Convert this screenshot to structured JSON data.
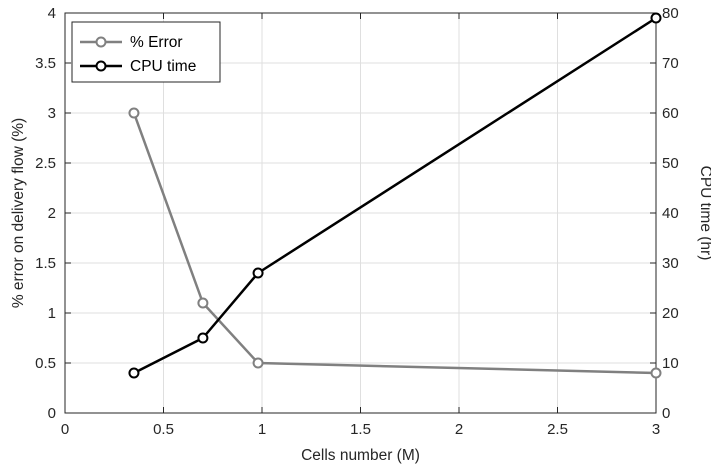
{
  "chart_data": {
    "type": "line",
    "xlabel": "Cells number (M)",
    "ylabel_left": "% error on delivery flow (%)",
    "ylabel_right": "CPU time (hr)",
    "xlim": [
      0,
      3
    ],
    "ylim_left": [
      0,
      4
    ],
    "ylim_right": [
      0,
      80
    ],
    "x_ticks": [
      0,
      0.5,
      1,
      1.5,
      2,
      2.5,
      3
    ],
    "x_tick_labels": [
      "0",
      "0.5",
      "1",
      "1.5",
      "2",
      "2.5",
      "3"
    ],
    "y_left_ticks": [
      0,
      0.5,
      1,
      1.5,
      2,
      2.5,
      3,
      3.5,
      4
    ],
    "y_left_tick_labels": [
      "0",
      "0.5",
      "1",
      "1.5",
      "2",
      "2.5",
      "3",
      "3.5",
      "4"
    ],
    "y_right_ticks": [
      0,
      10,
      20,
      30,
      40,
      50,
      60,
      70,
      80
    ],
    "y_right_tick_labels": [
      "0",
      "10",
      "20",
      "30",
      "40",
      "50",
      "60",
      "70",
      "80"
    ],
    "grid": true,
    "legend_position": "top-left",
    "series": [
      {
        "name": "% Error",
        "axis": "left",
        "color": "#808080",
        "x": [
          0.35,
          0.7,
          0.98,
          3.0
        ],
        "values": [
          3.0,
          1.1,
          0.5,
          0.4
        ]
      },
      {
        "name": "CPU time",
        "axis": "right",
        "color": "#000000",
        "x": [
          0.35,
          0.7,
          0.98,
          3.0
        ],
        "values": [
          8,
          15,
          28,
          79
        ]
      }
    ]
  }
}
